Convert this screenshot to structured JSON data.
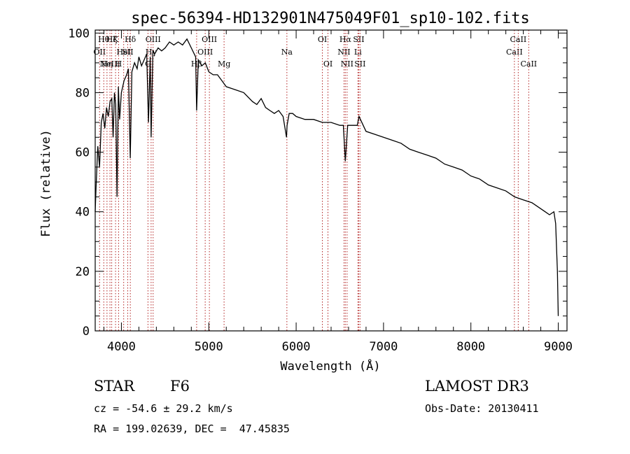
{
  "chart_data": {
    "type": "line",
    "title": "spec-56394-HD132901N475049F01_sp10-102.fits",
    "xlabel": "Wavelength (Å)",
    "ylabel": "Flux (relative)",
    "xlim": [
      3700,
      9100
    ],
    "ylim": [
      0,
      101
    ],
    "xticks": [
      4000,
      5000,
      6000,
      7000,
      8000,
      9000
    ],
    "yticks": [
      0,
      20,
      40,
      60,
      80,
      100
    ],
    "grid": false,
    "series": [
      {
        "x": [
          3700,
          3710,
          3730,
          3750,
          3770,
          3790,
          3810,
          3830,
          3850,
          3870,
          3890,
          3905,
          3920,
          3935,
          3950,
          3965,
          3980,
          4000,
          4030,
          4060,
          4080,
          4101,
          4120,
          4150,
          4180,
          4200,
          4230,
          4260,
          4290,
          4310,
          4330,
          4340,
          4360,
          4380,
          4420,
          4460,
          4500,
          4550,
          4600,
          4650,
          4700,
          4750,
          4800,
          4850,
          4861,
          4880,
          4920,
          4960,
          5000,
          5050,
          5100,
          5150,
          5200,
          5300,
          5400,
          5500,
          5550,
          5600,
          5650,
          5700,
          5750,
          5800,
          5850,
          5890,
          5896,
          5920,
          5960,
          6000,
          6100,
          6200,
          6300,
          6400,
          6500,
          6540,
          6563,
          6590,
          6650,
          6700,
          6720,
          6800,
          6900,
          7000,
          7100,
          7200,
          7300,
          7400,
          7500,
          7600,
          7700,
          7800,
          7900,
          8000,
          8100,
          8200,
          8300,
          8400,
          8500,
          8600,
          8700,
          8800,
          8850,
          8900,
          8950,
          8970,
          8990,
          9000
        ],
        "y": [
          40,
          48,
          62,
          55,
          70,
          73,
          68,
          75,
          72,
          77,
          78,
          65,
          80,
          76,
          45,
          82,
          71,
          80,
          84,
          86,
          88,
          58,
          87,
          90,
          88,
          92,
          89,
          91,
          93,
          70,
          92,
          65,
          94,
          93,
          95,
          94,
          95,
          97,
          96,
          97,
          96,
          98,
          95,
          92,
          74,
          91,
          89,
          90,
          87,
          86,
          86,
          84,
          82,
          81,
          80,
          77,
          76,
          78,
          75,
          74,
          73,
          74,
          72,
          65,
          69,
          73,
          73,
          72,
          71,
          71,
          70,
          70,
          69,
          69,
          57,
          69,
          69,
          69,
          72,
          67,
          66,
          65,
          64,
          63,
          61,
          60,
          59,
          58,
          56,
          55,
          54,
          52,
          51,
          49,
          48,
          47,
          45,
          44,
          43,
          41,
          40,
          39,
          40,
          36,
          20,
          5
        ]
      }
    ],
    "line_markers": [
      {
        "x": 3750,
        "label": "OII",
        "row": 1
      },
      {
        "x": 3798,
        "label": "Hθ",
        "row": 0
      },
      {
        "x": 3835,
        "label": "Hη",
        "row": 2
      },
      {
        "x": 3869,
        "label": "NeIII",
        "row": 2
      },
      {
        "x": 3889,
        "label": "Hζ",
        "row": 0
      },
      {
        "x": 3933,
        "label": "K",
        "row": 0
      },
      {
        "x": 3968,
        "label": "H",
        "row": 2
      },
      {
        "x": 4026,
        "label": "HeI",
        "row": 1
      },
      {
        "x": 4072,
        "label": "SII",
        "row": 1
      },
      {
        "x": 4102,
        "label": "Hδ",
        "row": 0
      },
      {
        "x": 4304,
        "label": "G",
        "row": 2
      },
      {
        "x": 4340,
        "label": "Hγ",
        "row": 1
      },
      {
        "x": 4363,
        "label": "OIII",
        "row": 0
      },
      {
        "x": 4861,
        "label": "Hβ",
        "row": 2
      },
      {
        "x": 4959,
        "label": "OIII",
        "row": 1
      },
      {
        "x": 5007,
        "label": "OIII",
        "row": 0
      },
      {
        "x": 5175,
        "label": "Mg",
        "row": 2
      },
      {
        "x": 5894,
        "label": "Na",
        "row": 1
      },
      {
        "x": 6300,
        "label": "OI",
        "row": 0
      },
      {
        "x": 6364,
        "label": "OI",
        "row": 2
      },
      {
        "x": 6548,
        "label": "NII",
        "row": 1
      },
      {
        "x": 6563,
        "label": "Hα",
        "row": 0
      },
      {
        "x": 6583,
        "label": "NII",
        "row": 2
      },
      {
        "x": 6707,
        "label": "Li",
        "row": 1
      },
      {
        "x": 6716,
        "label": "SII",
        "row": 0
      },
      {
        "x": 6731,
        "label": "SII",
        "row": 2
      },
      {
        "x": 8498,
        "label": "CaII",
        "row": 1
      },
      {
        "x": 8542,
        "label": "CaII",
        "row": 0
      },
      {
        "x": 8662,
        "label": "CaII",
        "row": 2
      }
    ]
  },
  "info": {
    "object_type": "STAR",
    "subclass": "F6",
    "survey": "LAMOST DR3",
    "redshift": "cz = -54.6 ± 29.2 km/s",
    "obs_date": "Obs-Date: 20130411",
    "coords": "RA = 199.02639, DEC =  47.45835"
  },
  "colors": {
    "spectrum": "#000000",
    "marker": "#b22222",
    "background": "#ffffff"
  }
}
